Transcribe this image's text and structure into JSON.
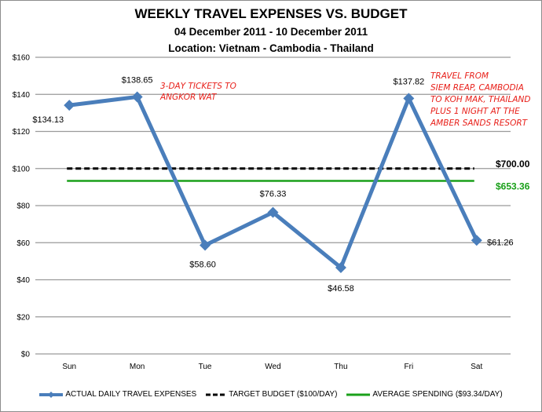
{
  "chart_data": {
    "type": "line",
    "title": "WEEKLY TRAVEL EXPENSES VS. BUDGET",
    "subtitle": "04 December 2011 - 10 December 2011",
    "subtitle2": "Location: Vietnam - Cambodia - Thailand",
    "xlabel": "",
    "ylabel": "",
    "categories": [
      "Sun",
      "Mon",
      "Tue",
      "Wed",
      "Thu",
      "Fri",
      "Sat"
    ],
    "ylim": [
      0,
      160
    ],
    "yticks": [
      "$0",
      "$20",
      "$40",
      "$60",
      "$80",
      "$100",
      "$120",
      "$140",
      "$160"
    ],
    "grid": true,
    "legend_position": "bottom",
    "series": [
      {
        "name": "ACTUAL DAILY TRAVEL EXPENSES",
        "values": [
          134.13,
          138.65,
          58.6,
          76.33,
          46.58,
          137.82,
          61.26
        ],
        "labels": [
          "$134.13",
          "$138.65",
          "$58.60",
          "$76.33",
          "$46.58",
          "$137.82",
          "$61.26"
        ],
        "color": "#4a7ebb",
        "style": "solid-marker-diamond"
      },
      {
        "name": "TARGET BUDGET ($100/DAY)",
        "values": [
          100,
          100,
          100,
          100,
          100,
          100,
          100
        ],
        "color": "#000000",
        "style": "dashed"
      },
      {
        "name": "AVERAGE SPENDING ($93.34/DAY)",
        "values": [
          93.34,
          93.34,
          93.34,
          93.34,
          93.34,
          93.34,
          93.34
        ],
        "color": "#1aa01a",
        "style": "solid"
      }
    ],
    "annotations": [
      {
        "text": "$700.00",
        "color": "#000000",
        "target": "TARGET BUDGET total"
      },
      {
        "text": "$653.36",
        "color": "#1aa01a",
        "target": "AVERAGE SPENDING total"
      },
      {
        "text": [
          "3-DAY TICKETS TO",
          "ANGKOR WAT"
        ],
        "color": "#e8201a",
        "target": "Mon"
      },
      {
        "text": [
          "TRAVEL FROM",
          "SIEM REAP, CAMBODIA",
          "TO KOH MAK, THAILAND",
          "PLUS 1 NIGHT AT THE",
          "AMBER SANDS RESORT"
        ],
        "color": "#e8201a",
        "target": "Fri"
      }
    ]
  },
  "legend": {
    "actual": "ACTUAL DAILY TRAVEL EXPENSES",
    "target": "TARGET BUDGET ($100/DAY)",
    "average": "AVERAGE SPENDING ($93.34/DAY)"
  }
}
